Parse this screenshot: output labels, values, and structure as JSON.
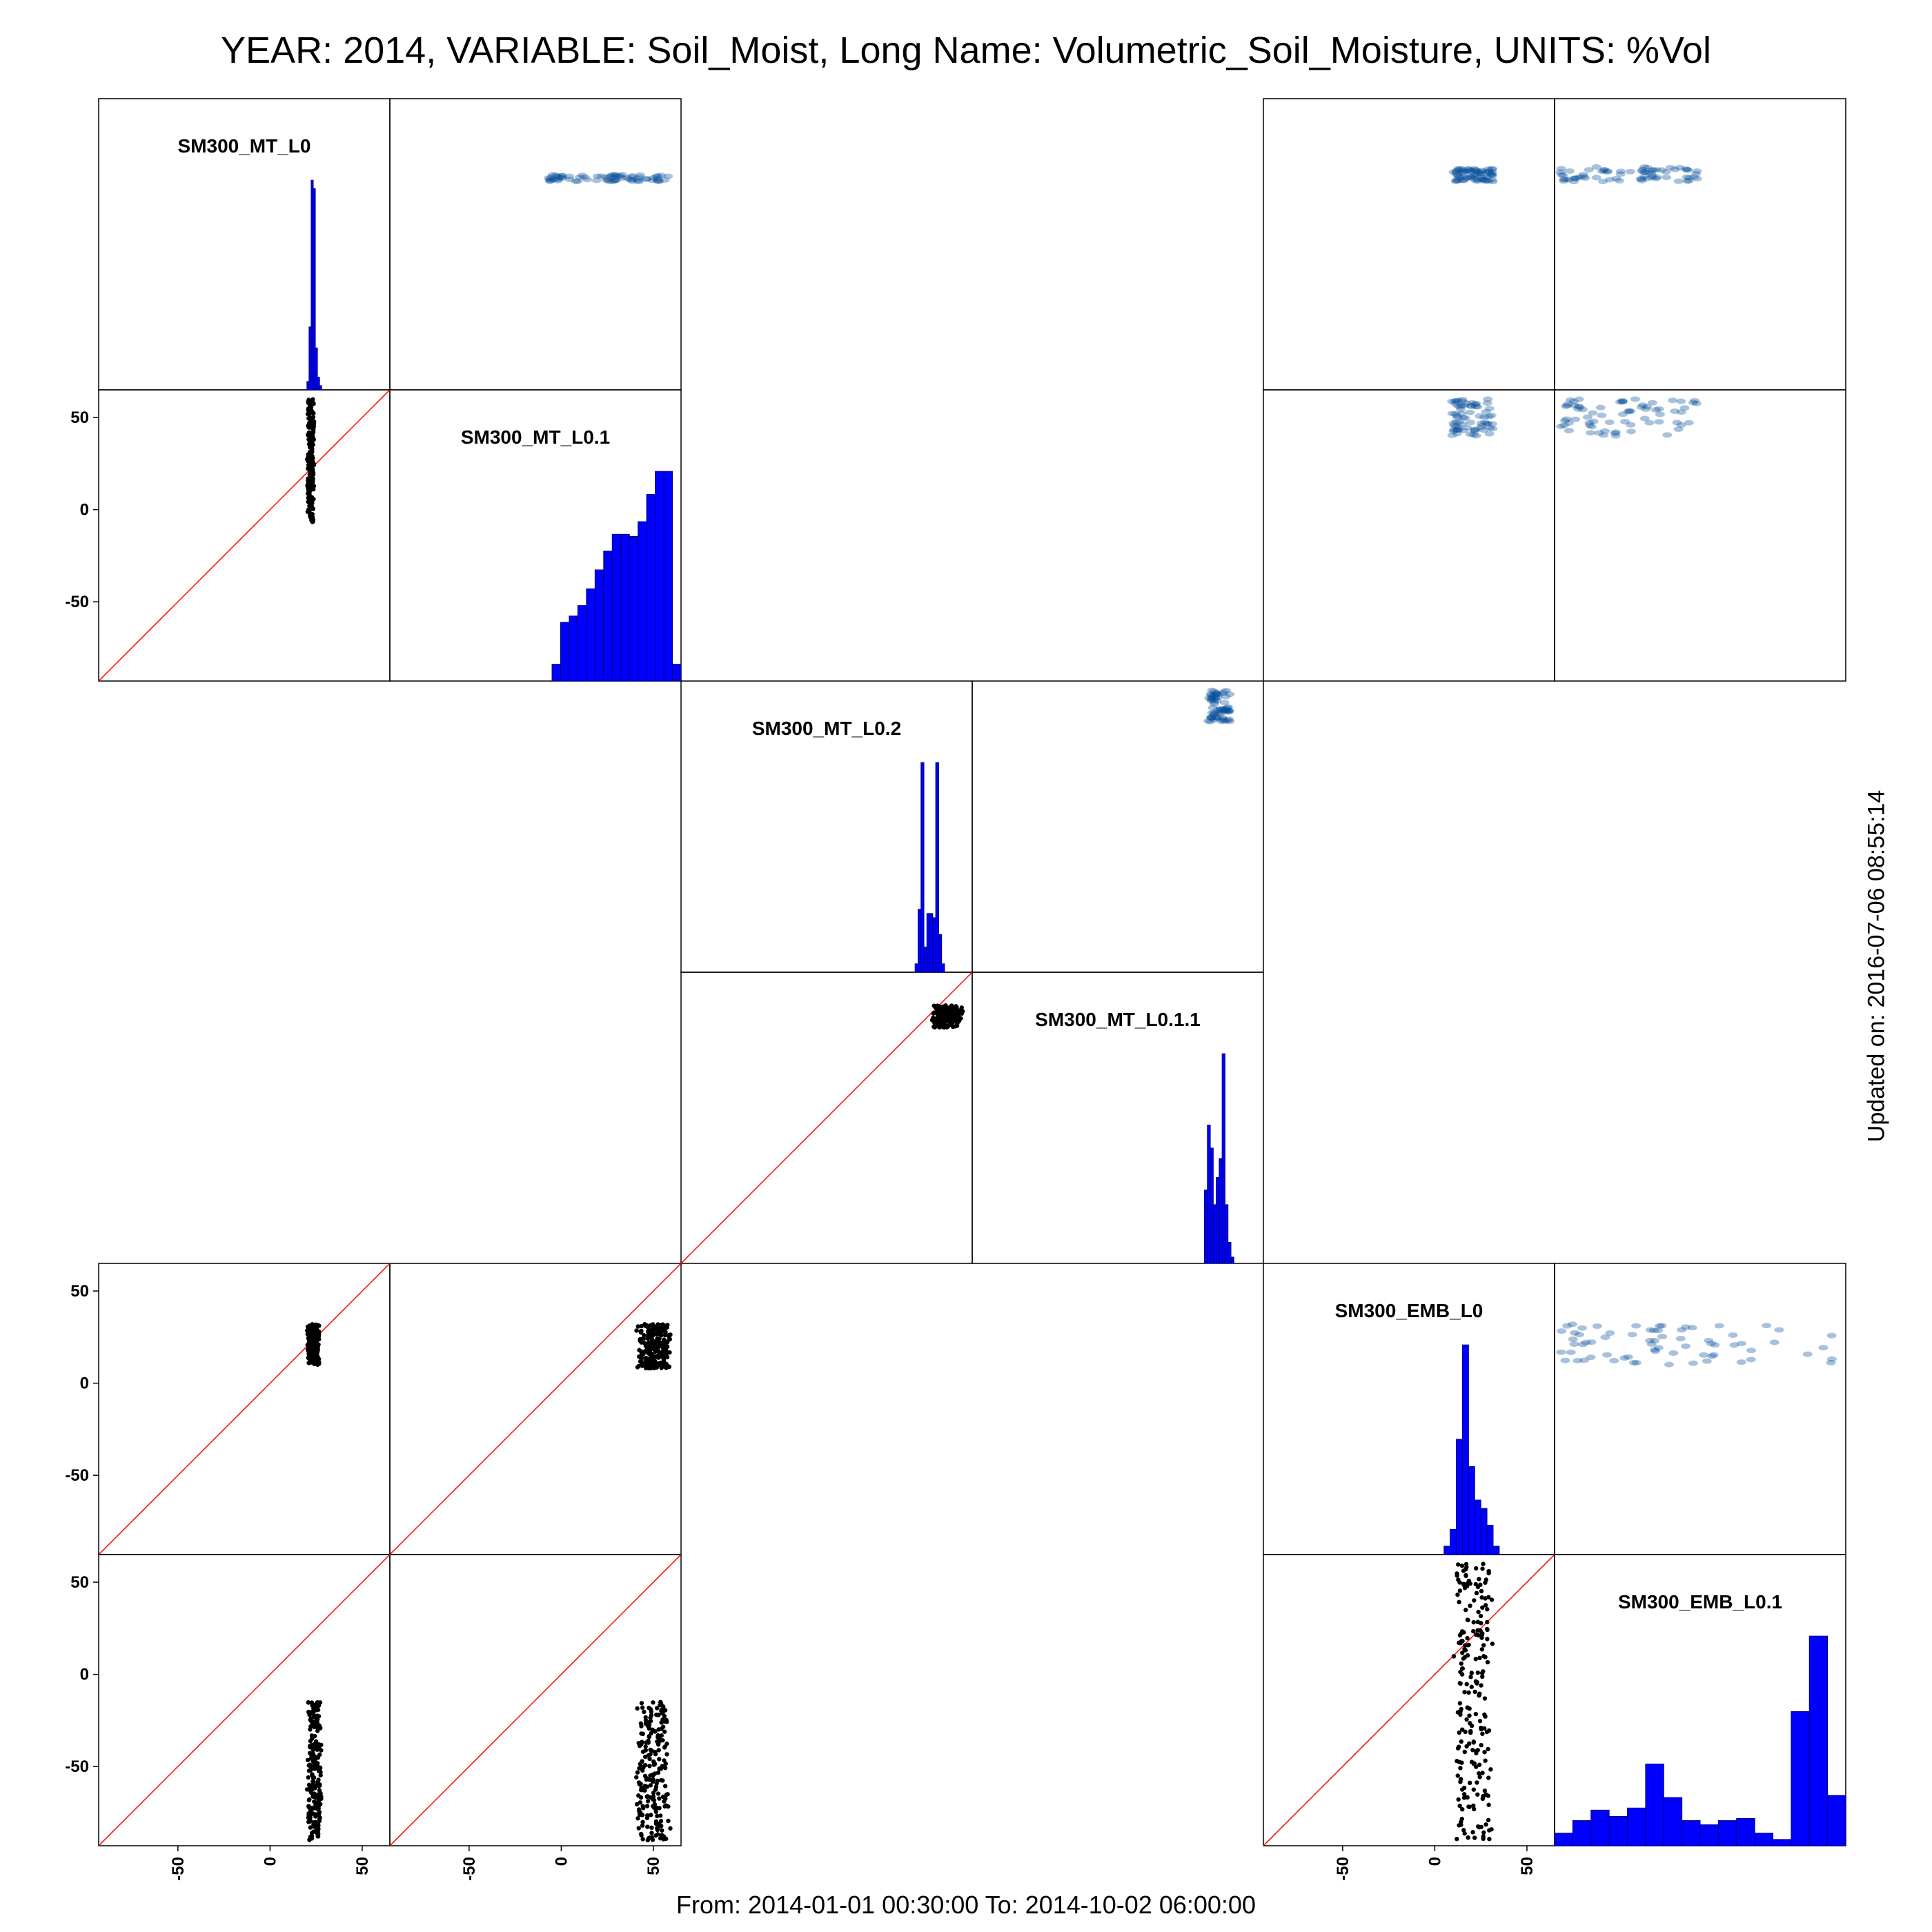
{
  "title": "YEAR: 2014, VARIABLE: Soil_Moist, Long Name: Volumetric_Soil_Moisture, UNITS: %Vol",
  "footer": "From: 2014-01-01 00:30:00 To: 2014-10-02 06:00:00",
  "updated": "Updated on: 2016-07-06 08:55:14",
  "colors": {
    "hist": "#0000ff",
    "hist_edge": "#00007a",
    "smooth": "#08519c",
    "points": "#000000",
    "identity": "#ff0000",
    "frame": "#000000"
  },
  "chart_data": {
    "type": "scatter",
    "variables": [
      "SM300_MT_L0",
      "SM300_MT_L0.1",
      "SM300_MT_L0.2",
      "SM300_MT_L0.1.1",
      "SM300_EMB_L0",
      "SM300_EMB_L0.1"
    ],
    "axis_range": [
      -93,
      65
    ],
    "ticks": [
      -50,
      0,
      50
    ],
    "tick_labels": [
      "-50",
      "0",
      "50"
    ],
    "identity_line": true,
    "upper_panel_style": "smoothed density scatter",
    "lower_panel_style": "point scatter with 1:1 reference line",
    "diagonal_style": "histogram",
    "pairs_plotted": [
      {
        "x": "SM300_MT_L0",
        "y": "SM300_MT_L0.1",
        "x_range": [
          20,
          24
        ],
        "y_range": [
          -7,
          60
        ]
      },
      {
        "x": "SM300_MT_L0.2",
        "y": "SM300_MT_L0.1.1",
        "x_range": [
          43,
          60
        ],
        "y_range": [
          35,
          47
        ]
      },
      {
        "x": "SM300_MT_L0",
        "y": "SM300_EMB_L0",
        "x_range": [
          20,
          27
        ],
        "y_range": [
          10,
          32
        ]
      },
      {
        "x": "SM300_MT_L0.1",
        "y": "SM300_EMB_L0",
        "x_range": [
          40,
          60
        ],
        "y_range": [
          8,
          32
        ]
      },
      {
        "x": "SM300_MT_L0",
        "y": "SM300_EMB_L0.1",
        "x_range": [
          20,
          28
        ],
        "y_range": [
          -90,
          -15
        ]
      },
      {
        "x": "SM300_MT_L0.1",
        "y": "SM300_EMB_L0.1",
        "x_range": [
          40,
          60
        ],
        "y_range": [
          -90,
          -15
        ]
      },
      {
        "x": "SM300_EMB_L0",
        "y": "SM300_EMB_L0.1",
        "x_range": [
          10,
          32
        ],
        "y_range": [
          -90,
          60
        ]
      }
    ],
    "histograms": [
      {
        "variable": "SM300_MT_L0",
        "x_range": [
          20,
          28
        ],
        "counts": [
          4,
          30,
          100,
          96,
          20,
          6,
          2
        ]
      },
      {
        "variable": "SM300_MT_L0.1",
        "x_range": [
          -5,
          65
        ],
        "counts": [
          8,
          28,
          31,
          36,
          44,
          53,
          62,
          70,
          70,
          69,
          76,
          89,
          100,
          100,
          8
        ]
      },
      {
        "variable": "SM300_MT_L0.2",
        "x_range": [
          34,
          50
        ],
        "counts": [
          4,
          30,
          100,
          12,
          28,
          28,
          26,
          100,
          18,
          4
        ]
      },
      {
        "variable": "SM300_MT_L0.1.1",
        "x_range": [
          33,
          49
        ],
        "counts": [
          35,
          66,
          55,
          28,
          41,
          50,
          100,
          28,
          10,
          3
        ]
      },
      {
        "variable": "SM300_EMB_L0",
        "x_range": [
          5,
          35
        ],
        "counts": [
          4,
          12,
          55,
          100,
          42,
          26,
          22,
          14,
          4
        ]
      },
      {
        "variable": "SM300_EMB_L0.1",
        "x_range": [
          -93,
          65
        ],
        "counts": [
          6,
          12,
          17,
          14,
          18,
          39,
          23,
          12,
          10,
          12,
          13,
          6,
          3,
          64,
          100,
          24
        ]
      }
    ]
  }
}
